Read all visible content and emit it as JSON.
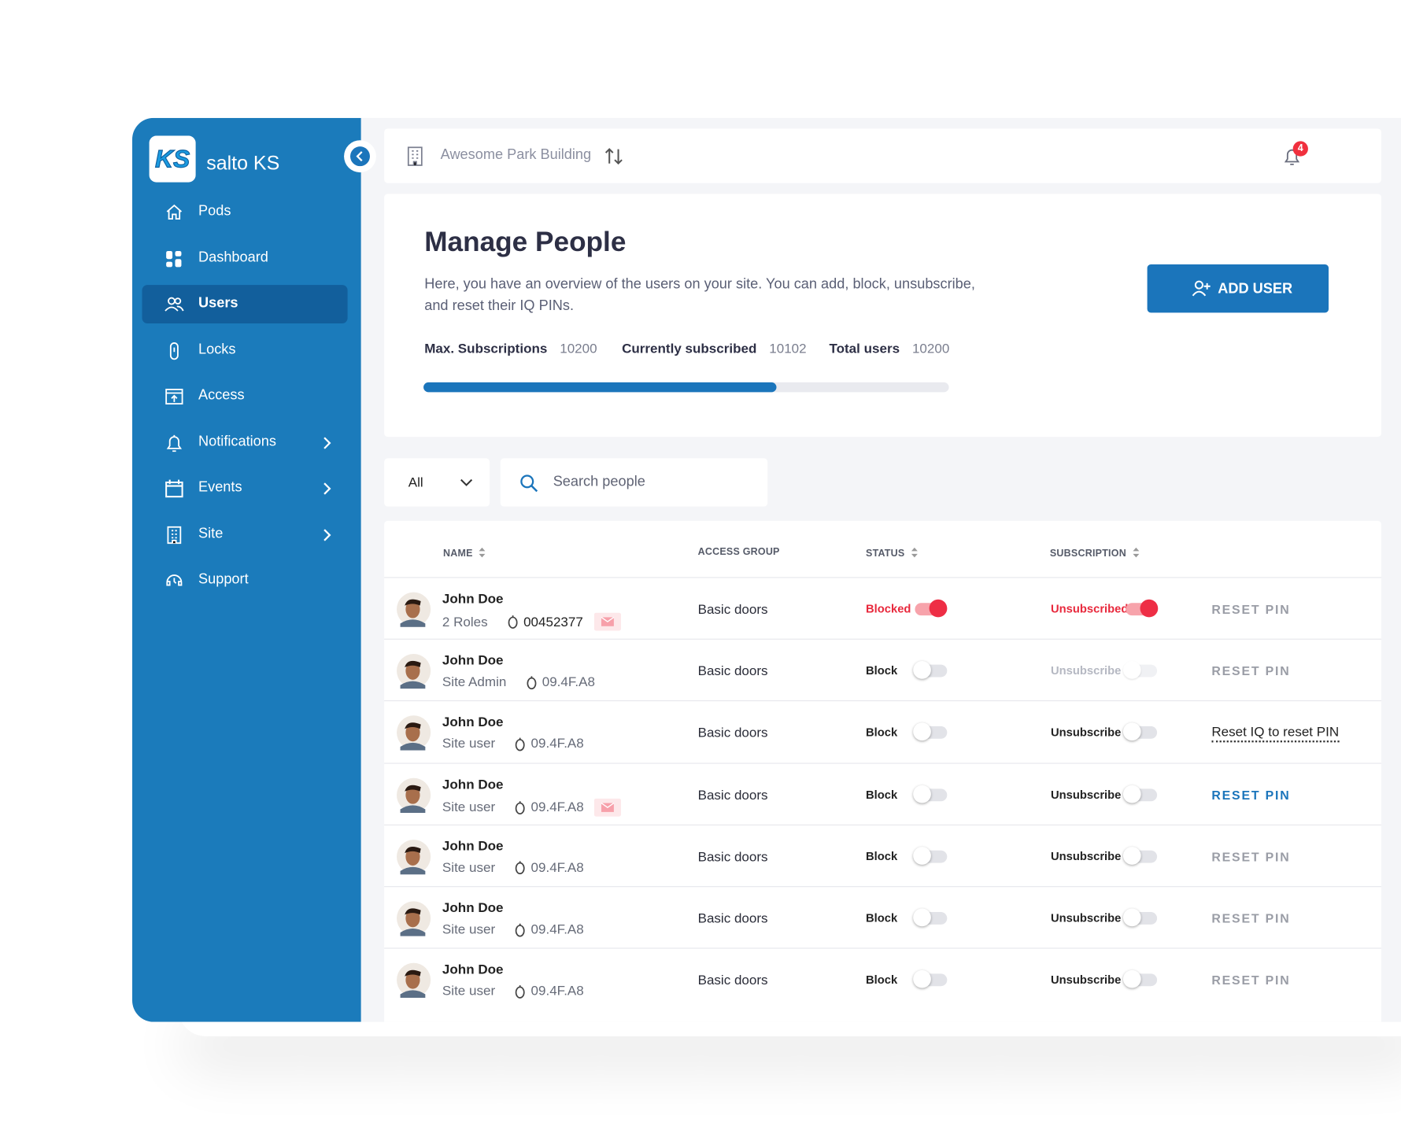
{
  "sidebar": {
    "brand": "salto KS",
    "nav": [
      {
        "label": "Pods",
        "icon": "home",
        "active": false,
        "chevron": false
      },
      {
        "label": "Dashboard",
        "icon": "grid",
        "active": false,
        "chevron": false
      },
      {
        "label": "Users",
        "icon": "users",
        "active": true,
        "chevron": false
      },
      {
        "label": "Locks",
        "icon": "lock",
        "active": false,
        "chevron": false
      },
      {
        "label": "Access",
        "icon": "access",
        "active": false,
        "chevron": false
      },
      {
        "label": "Notifications",
        "icon": "bell",
        "active": false,
        "chevron": true
      },
      {
        "label": "Events",
        "icon": "calendar",
        "active": false,
        "chevron": true
      },
      {
        "label": "Site",
        "icon": "building",
        "active": false,
        "chevron": true
      },
      {
        "label": "Support",
        "icon": "support",
        "active": false,
        "chevron": false
      }
    ]
  },
  "header": {
    "site": "Awesome Park Building",
    "notification_count": "4"
  },
  "page": {
    "title": "Manage People",
    "description_lines": [
      "Here, you have an overview of the users on your site. You can add, block, unsubscribe,",
      "and reset their IQ PINs."
    ],
    "add_button": "ADD USER",
    "stats": [
      {
        "label": "Max. Subscriptions",
        "value": "10200"
      },
      {
        "label": "Currently subscribed",
        "value": "10102"
      },
      {
        "label": "Total users",
        "value": "10200"
      }
    ]
  },
  "filter": {
    "selected": "All",
    "search_placeholder": "Search people"
  },
  "table": {
    "columns": [
      "NAME",
      "ACCESS GROUP",
      "STATUS",
      "SUBSCRIPTION"
    ],
    "rows": [
      {
        "name": "John Doe",
        "role": "2 Roles",
        "pin": "00452377",
        "pin_strong": true,
        "email": true,
        "access": "Basic doors",
        "status": "Blocked",
        "blocked": true,
        "subscription": "Unsubscribed",
        "unsubscribed": true,
        "sub_disabled": false,
        "action": "RESET PIN",
        "action_style": "muted"
      },
      {
        "name": "John Doe",
        "role": "Site Admin",
        "pin": "09.4F.A8",
        "pin_strong": false,
        "email": false,
        "access": "Basic doors",
        "status": "Block",
        "blocked": false,
        "subscription": "Unsubscribe",
        "unsubscribed": false,
        "sub_disabled": true,
        "action": "RESET PIN",
        "action_style": "muted"
      },
      {
        "name": "John Doe",
        "role": "Site user",
        "pin": "09.4F.A8",
        "pin_strong": false,
        "email": false,
        "access": "Basic doors",
        "status": "Block",
        "blocked": false,
        "subscription": "Unsubscribe",
        "unsubscribed": false,
        "sub_disabled": false,
        "action": "Reset IQ to reset PIN",
        "action_style": "dotted"
      },
      {
        "name": "John Doe",
        "role": "Site user",
        "pin": "09.4F.A8",
        "pin_strong": false,
        "email": true,
        "access": "Basic doors",
        "status": "Block",
        "blocked": false,
        "subscription": "Unsubscribe",
        "unsubscribed": false,
        "sub_disabled": false,
        "action": "RESET PIN",
        "action_style": "link"
      },
      {
        "name": "John Doe",
        "role": "Site user",
        "pin": "09.4F.A8",
        "pin_strong": false,
        "email": false,
        "access": "Basic doors",
        "status": "Block",
        "blocked": false,
        "subscription": "Unsubscribe",
        "unsubscribed": false,
        "sub_disabled": false,
        "action": "RESET PIN",
        "action_style": "muted"
      },
      {
        "name": "John Doe",
        "role": "Site user",
        "pin": "09.4F.A8",
        "pin_strong": false,
        "email": false,
        "access": "Basic doors",
        "status": "Block",
        "blocked": false,
        "subscription": "Unsubscribe",
        "unsubscribed": false,
        "sub_disabled": false,
        "action": "RESET PIN",
        "action_style": "muted"
      },
      {
        "name": "John Doe",
        "role": "Site user",
        "pin": "09.4F.A8",
        "pin_strong": false,
        "email": false,
        "access": "Basic doors",
        "status": "Block",
        "blocked": false,
        "subscription": "Unsubscribe",
        "unsubscribed": false,
        "sub_disabled": false,
        "action": "RESET PIN",
        "action_style": "muted"
      }
    ]
  }
}
